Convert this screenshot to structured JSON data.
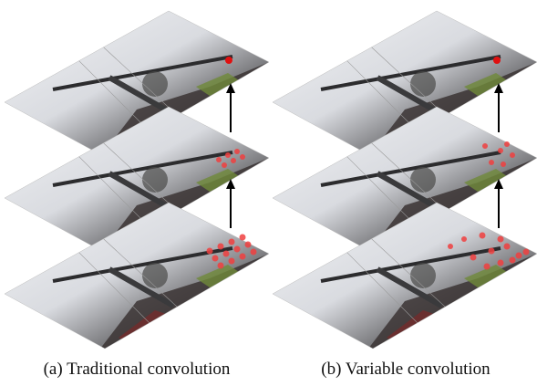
{
  "captions": [
    "(a) Traditional convolution",
    "(b) Variable convolution"
  ]
}
